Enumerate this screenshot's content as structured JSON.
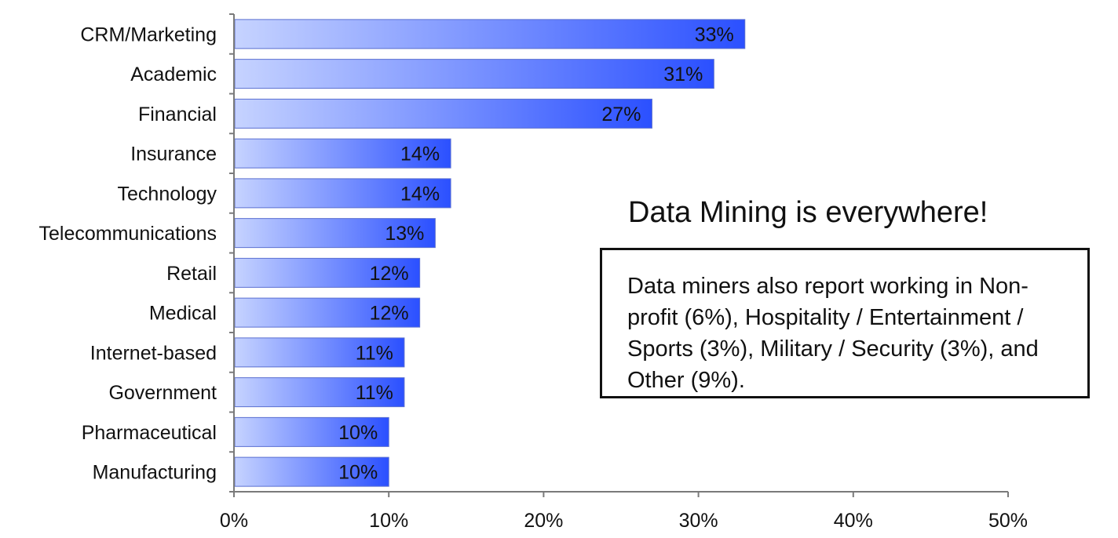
{
  "chart_data": {
    "type": "bar",
    "orientation": "horizontal",
    "categories": [
      "CRM/Marketing",
      "Academic",
      "Financial",
      "Insurance",
      "Technology",
      "Telecommunications",
      "Retail",
      "Medical",
      "Internet-based",
      "Government",
      "Pharmaceutical",
      "Manufacturing"
    ],
    "values": [
      33,
      31,
      27,
      14,
      14,
      13,
      12,
      12,
      11,
      11,
      10,
      10
    ],
    "value_labels": [
      "33%",
      "31%",
      "27%",
      "14%",
      "14%",
      "13%",
      "12%",
      "12%",
      "11%",
      "11%",
      "10%",
      "10%"
    ],
    "xlim": [
      0,
      50
    ],
    "xticks": [
      0,
      10,
      20,
      30,
      40,
      50
    ],
    "xtick_labels": [
      "0%",
      "10%",
      "20%",
      "30%",
      "40%",
      "50%"
    ],
    "title": "",
    "xlabel": "",
    "ylabel": "",
    "grid": false,
    "legend": "none",
    "colors": {
      "bar_start": "#c6d3ff",
      "bar_end": "#2b50ff",
      "axis": "#7a7a7a",
      "text": "#111111"
    }
  },
  "annotation": {
    "headline": "Data Mining is everywhere!",
    "note": "Data miners also report working in Non-profit (6%), Hospitality / Entertainment / Sports (3%), Military / Security (3%), and Other (9%)."
  }
}
